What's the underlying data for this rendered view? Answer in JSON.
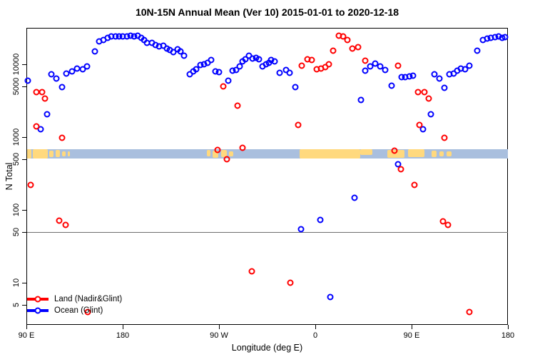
{
  "title": "10N-15N Annual Mean (Ver 10)   2015-01-01 to 2020-12-18",
  "chart_data": {
    "type": "scatter",
    "title": "10N-15N Annual Mean (Ver 10)   2015-01-01 to 2020-12-18",
    "xlabel": "Longitude (deg E)",
    "ylabel": "N Total",
    "x_axis": {
      "range_axis_deg": [
        90,
        540
      ],
      "ticks": [
        {
          "deg": 90,
          "label": "90 E"
        },
        {
          "deg": 180,
          "label": "180"
        },
        {
          "deg": 270,
          "label": "90 W"
        },
        {
          "deg": 360,
          "label": "0"
        },
        {
          "deg": 450,
          "label": "90 E"
        },
        {
          "deg": 540,
          "label": "180"
        }
      ]
    },
    "y_axis": {
      "scale": "log",
      "range": [
        2,
        35000
      ],
      "ticks": [
        {
          "value": 5,
          "label": "5"
        },
        {
          "value": 10,
          "label": "10"
        },
        {
          "value": 50,
          "label": "50"
        },
        {
          "value": 100,
          "label": "100"
        },
        {
          "value": 500,
          "label": "500"
        },
        {
          "value": 1000,
          "label": "1000"
        },
        {
          "value": 5000,
          "label": "5000"
        },
        {
          "value": 10000,
          "label": "10000"
        }
      ]
    },
    "reference_line": {
      "value": 50,
      "color": "#6e6e6e"
    },
    "strip": {
      "description": "land/ocean map band along 10N-15N",
      "ocean_color": "#A9BFDE",
      "land_color": "#FFD97E",
      "value_range": [
        510,
        680
      ],
      "land_patches": [
        {
          "from": 90,
          "to": 94.7
        },
        {
          "from": 96,
          "to": 110
        },
        {
          "from": 111.3,
          "to": 115.3,
          "top": 0.15,
          "h": 0.7
        },
        {
          "from": 117.3,
          "to": 121.3,
          "top": 0.1,
          "h": 0.75
        },
        {
          "from": 123.3,
          "to": 126.7,
          "top": 0.2,
          "h": 0.6
        },
        {
          "from": 128.7,
          "to": 130.7,
          "top": 0.25,
          "h": 0.5
        },
        {
          "from": 258.7,
          "to": 262,
          "top": 0.1,
          "h": 0.7
        },
        {
          "from": 264,
          "to": 269.3,
          "top": 0.15,
          "h": 0.75
        },
        {
          "from": 272,
          "to": 277.3,
          "top": 0.05,
          "h": 0.8
        },
        {
          "from": 279.3,
          "to": 283.3,
          "top": 0.2,
          "h": 0.6
        },
        {
          "from": 345.3,
          "to": 402
        },
        {
          "from": 402,
          "to": 413.3,
          "top": 0,
          "h": 0.65
        },
        {
          "from": 427.3,
          "to": 443.3,
          "top": 0.05,
          "h": 0.9
        },
        {
          "from": 446.7,
          "to": 462,
          "top": 0,
          "h": 0.85
        },
        {
          "from": 468.7,
          "to": 473.3,
          "top": 0.15,
          "h": 0.7
        },
        {
          "from": 476,
          "to": 480,
          "top": 0.2,
          "h": 0.6
        },
        {
          "from": 482.7,
          "to": 487.3,
          "top": 0.25,
          "h": 0.5
        }
      ]
    },
    "series": [
      {
        "name": "Land (Nadir&Glint)",
        "color": "#FF0000",
        "points": [
          [
            94,
            222
          ],
          [
            99.3,
            4100
          ],
          [
            99.3,
            1400
          ],
          [
            104.7,
            4100
          ],
          [
            107.3,
            3350
          ],
          [
            120.7,
            71
          ],
          [
            123.3,
            975
          ],
          [
            126.7,
            62
          ],
          [
            147.1,
            4
          ],
          [
            268.7,
            660
          ],
          [
            274,
            4950
          ],
          [
            277.3,
            500
          ],
          [
            287.3,
            2670
          ],
          [
            292,
            710
          ],
          [
            300.5,
            14.4
          ],
          [
            336.7,
            10
          ],
          [
            344,
            1470
          ],
          [
            347.3,
            9550
          ],
          [
            352.7,
            11700
          ],
          [
            356.7,
            11500
          ],
          [
            361.3,
            8500
          ],
          [
            365.3,
            8700
          ],
          [
            369.3,
            9100
          ],
          [
            372.7,
            9950
          ],
          [
            376.7,
            15500
          ],
          [
            382,
            24800
          ],
          [
            386,
            24200
          ],
          [
            390,
            21600
          ],
          [
            394.7,
            16600
          ],
          [
            400,
            17000
          ],
          [
            406.7,
            11200
          ],
          [
            434,
            645
          ],
          [
            437.3,
            9550
          ],
          [
            440,
            360
          ],
          [
            452.7,
            222
          ],
          [
            456,
            4100
          ],
          [
            457.3,
            1470
          ],
          [
            462,
            4100
          ],
          [
            466,
            3350
          ],
          [
            479.3,
            69
          ],
          [
            480.7,
            975
          ],
          [
            484,
            62
          ],
          [
            504,
            4
          ]
        ]
      },
      {
        "name": "Ocean (Glint)",
        "color": "#0000FF",
        "points": [
          [
            91.5,
            6000
          ],
          [
            103.1,
            1290
          ],
          [
            109.3,
            2080
          ],
          [
            113.3,
            7250
          ],
          [
            118,
            6350
          ],
          [
            123.3,
            4850
          ],
          [
            127.3,
            7400
          ],
          [
            132.7,
            7950
          ],
          [
            137.3,
            8700
          ],
          [
            142.7,
            8500
          ],
          [
            146.7,
            9300
          ],
          [
            154,
            15000
          ],
          [
            158,
            20600
          ],
          [
            162,
            21600
          ],
          [
            166,
            23100
          ],
          [
            169.3,
            24200
          ],
          [
            173.3,
            24200
          ],
          [
            176.7,
            24200
          ],
          [
            180,
            24200
          ],
          [
            184,
            24200
          ],
          [
            187.3,
            24800
          ],
          [
            190.7,
            24200
          ],
          [
            194,
            24800
          ],
          [
            197.3,
            23100
          ],
          [
            200,
            21600
          ],
          [
            202.7,
            19700
          ],
          [
            207.3,
            19700
          ],
          [
            210.7,
            18400
          ],
          [
            214,
            17600
          ],
          [
            218,
            18000
          ],
          [
            221.3,
            16500
          ],
          [
            224,
            15800
          ],
          [
            227.3,
            14700
          ],
          [
            231.3,
            16100
          ],
          [
            234,
            15100
          ],
          [
            237.3,
            13100
          ],
          [
            242.7,
            7250
          ],
          [
            246,
            7950
          ],
          [
            248.7,
            8500
          ],
          [
            252.7,
            9750
          ],
          [
            256,
            10000
          ],
          [
            259.3,
            10400
          ],
          [
            262.7,
            11500
          ],
          [
            266.7,
            7950
          ],
          [
            270,
            7800
          ],
          [
            278.7,
            5900
          ],
          [
            282.7,
            8100
          ],
          [
            286,
            8300
          ],
          [
            289.3,
            9300
          ],
          [
            292,
            10900
          ],
          [
            294.7,
            11700
          ],
          [
            298,
            13100
          ],
          [
            301.3,
            12000
          ],
          [
            304.7,
            12300
          ],
          [
            307.3,
            11700
          ],
          [
            310.7,
            9300
          ],
          [
            314,
            10000
          ],
          [
            316.7,
            10400
          ],
          [
            318.7,
            11500
          ],
          [
            322,
            10900
          ],
          [
            326.7,
            7600
          ],
          [
            332.7,
            8300
          ],
          [
            336,
            7600
          ],
          [
            341.3,
            4850
          ],
          [
            346.7,
            54
          ],
          [
            364.7,
            73
          ],
          [
            374,
            6.3
          ],
          [
            396.7,
            148
          ],
          [
            402.7,
            3270
          ],
          [
            406.7,
            8100
          ],
          [
            411.3,
            9300
          ],
          [
            416,
            10200
          ],
          [
            420.7,
            9300
          ],
          [
            425.3,
            8300
          ],
          [
            431.3,
            5050
          ],
          [
            437.3,
            420
          ],
          [
            440.7,
            6600
          ],
          [
            444,
            6600
          ],
          [
            448,
            6750
          ],
          [
            451.3,
            6900
          ],
          [
            460.7,
            1290
          ],
          [
            468,
            2080
          ],
          [
            471.3,
            7250
          ],
          [
            476,
            6350
          ],
          [
            480.7,
            4750
          ],
          [
            485.3,
            7250
          ],
          [
            489.3,
            7400
          ],
          [
            492.7,
            8100
          ],
          [
            496,
            8700
          ],
          [
            500,
            8500
          ],
          [
            504,
            9550
          ],
          [
            511.3,
            15500
          ],
          [
            516.7,
            21600
          ],
          [
            520.7,
            22600
          ],
          [
            524,
            23100
          ],
          [
            528,
            23700
          ],
          [
            531.3,
            24200
          ],
          [
            534.7,
            23100
          ],
          [
            537.3,
            23700
          ]
        ]
      }
    ],
    "legend": {
      "position": "bottom-left"
    }
  }
}
